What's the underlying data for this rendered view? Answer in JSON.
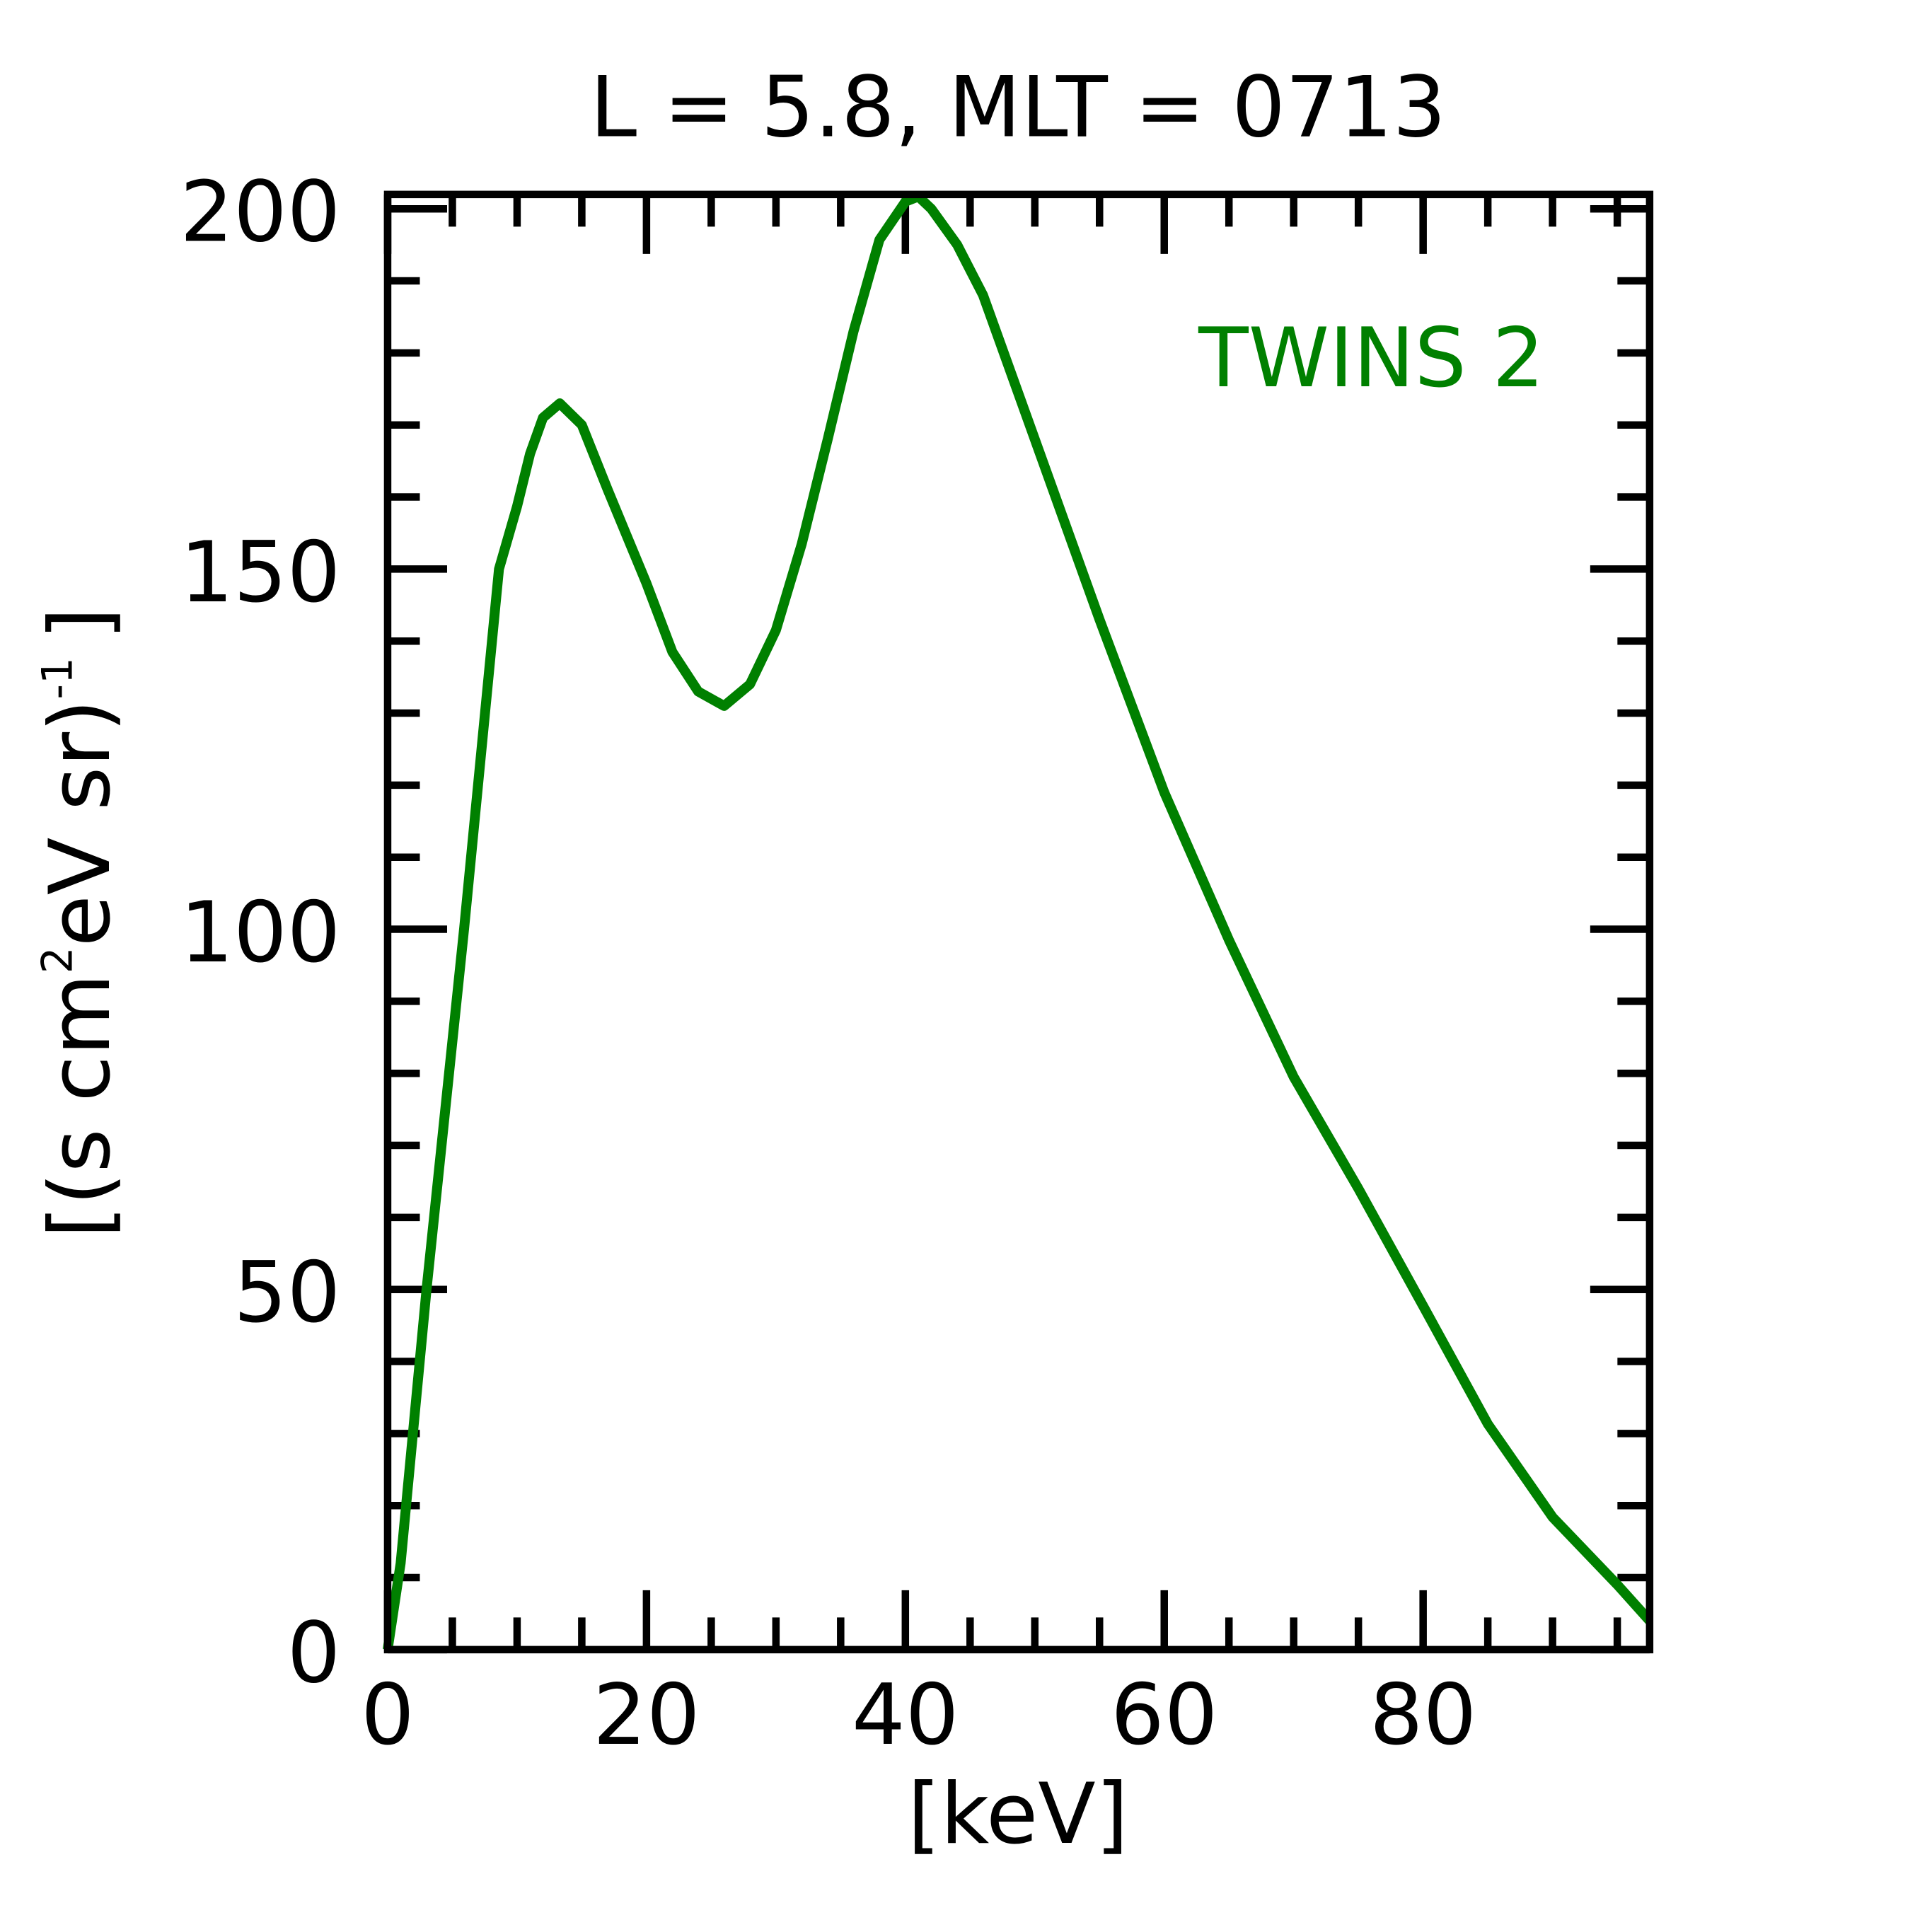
{
  "chart_data": {
    "type": "line",
    "title": "L =  5.8, MLT = 0713",
    "xlabel": "[keV]",
    "ylabel": "[(s cm",
    "ylabel_parts": [
      "[(s cm",
      "2",
      "eV sr)",
      "-1",
      "]"
    ],
    "xlim": [
      0,
      97.5
    ],
    "ylim": [
      0,
      202
    ],
    "xticks": [
      0,
      20,
      40,
      60,
      80
    ],
    "xtick_labels": [
      "0",
      "20",
      "40",
      "60",
      "80"
    ],
    "yticks": [
      0,
      50,
      100,
      150,
      200
    ],
    "ytick_labels": [
      "0",
      "50",
      "100",
      "150",
      "200"
    ],
    "x_minor_step": 5,
    "y_minor_step": 10,
    "grid": false,
    "legend_placement": "top-right",
    "series": [
      {
        "name": "TWINS 2",
        "color": "#008000",
        "x": [
          0,
          1,
          3,
          5.9,
          8.6,
          10,
          11,
          12,
          13.3,
          15,
          17,
          20,
          22,
          24,
          26,
          28,
          30,
          32,
          34,
          36,
          38,
          40,
          41,
          42,
          44,
          46,
          48,
          50,
          55,
          60,
          65,
          70,
          75,
          80,
          85,
          90,
          95,
          97.5
        ],
        "y": [
          0,
          12,
          50,
          100,
          150,
          158.7,
          166,
          171,
          173,
          170,
          161,
          148,
          138.5,
          133,
          131,
          134,
          141.5,
          153.5,
          168,
          183,
          195.7,
          201,
          201.7,
          200,
          195,
          188,
          178,
          168,
          143,
          119,
          98.5,
          79.5,
          64,
          47.7,
          31.3,
          18.4,
          9,
          4
        ]
      }
    ]
  }
}
